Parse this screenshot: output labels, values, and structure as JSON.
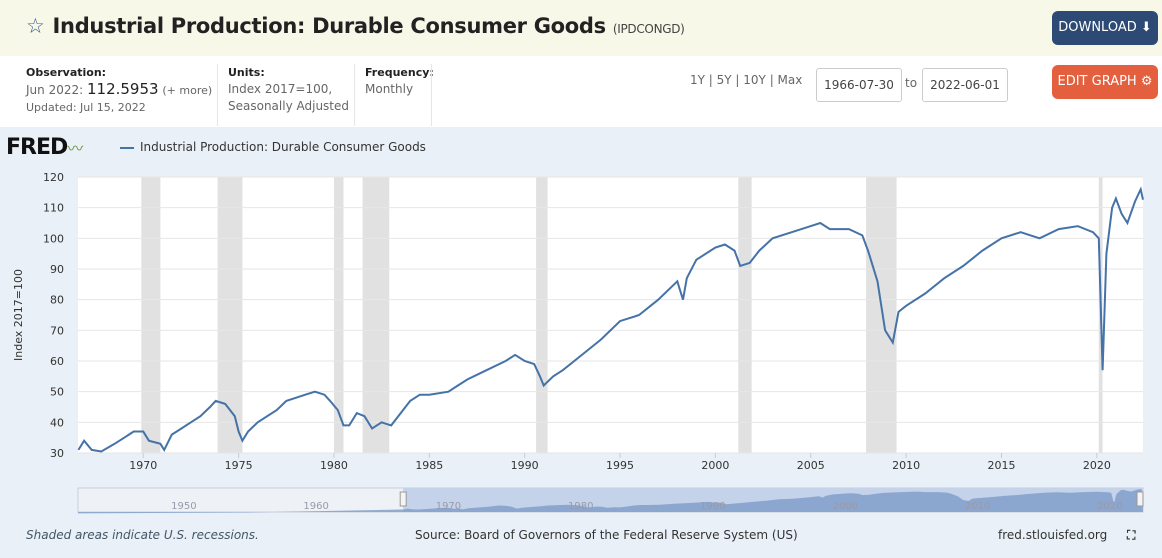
{
  "header": {
    "title": "Industrial Production: Durable Consumer Goods",
    "series_id": "(IPDCONGD)",
    "download": "DOWNLOAD",
    "edit_graph": "EDIT GRAPH"
  },
  "meta": {
    "observation_label": "Observation:",
    "observation_date": "Jun 2022:",
    "observation_value": "112.5953",
    "more": "(+ more)",
    "updated": "Updated: Jul 15, 2022",
    "units_label": "Units:",
    "units_1": "Index 2017=100,",
    "units_2": "Seasonally Adjusted",
    "frequency_label": "Frequency:",
    "frequency": "Monthly"
  },
  "range": {
    "presets": "1Y | 5Y | 10Y | Max",
    "start": "1966-07-30",
    "to": "to",
    "end": "2022-06-01"
  },
  "footer": {
    "note": "Shaded areas indicate U.S. recessions.",
    "source": "Source: Board of Governors of the Federal Reserve System (US)",
    "site": "fred.stlouisfed.org"
  },
  "logo": "FRED",
  "colors": {
    "line": "#4572a7",
    "recession": "#e1e1e1",
    "download": "#2d4a74",
    "edit": "#e35f3e"
  },
  "chart_data": {
    "type": "line",
    "title": "",
    "ylabel": "Index 2017=100",
    "ylim": [
      30,
      120
    ],
    "xlim": [
      1966.58,
      2022.42
    ],
    "yticks": [
      30,
      40,
      50,
      60,
      70,
      80,
      90,
      100,
      110,
      120
    ],
    "xticks": [
      1970,
      1975,
      1980,
      1985,
      1990,
      1995,
      2000,
      2005,
      2010,
      2015,
      2020
    ],
    "grid": true,
    "legend": "top-left",
    "series": [
      {
        "name": "Industrial Production: Durable Consumer Goods",
        "x": [
          1966.6,
          1966.9,
          1967.3,
          1967.8,
          1968.5,
          1969,
          1969.5,
          1970,
          1970.3,
          1970.9,
          1971.1,
          1971.5,
          1972,
          1972.5,
          1973,
          1973.5,
          1973.8,
          1974.3,
          1974.8,
          1975.0,
          1975.2,
          1975.5,
          1976,
          1977,
          1977.5,
          1978,
          1978.5,
          1979,
          1979.5,
          1979.8,
          1980.2,
          1980.5,
          1980.8,
          1981.2,
          1981.6,
          1982,
          1982.5,
          1983,
          1983.5,
          1984,
          1984.5,
          1985,
          1986,
          1986.5,
          1987,
          1988,
          1989,
          1989.5,
          1990,
          1990.5,
          1990.8,
          1991,
          1991.5,
          1992,
          1993,
          1994,
          1995,
          1995.5,
          1996,
          1997,
          1998,
          1998.3,
          1998.5,
          1999,
          2000,
          2000.5,
          2001,
          2001.3,
          2001.8,
          2002.3,
          2003,
          2004,
          2005,
          2005.5,
          2006,
          2007,
          2007.7,
          2008,
          2008.5,
          2008.9,
          2009.3,
          2009.6,
          2010,
          2011,
          2012,
          2013,
          2014,
          2015,
          2016,
          2017,
          2018,
          2019,
          2019.8,
          2020.1,
          2020.3,
          2020.5,
          2020.8,
          2021,
          2021.3,
          2021.6,
          2022,
          2022.3,
          2022.42
        ],
        "y": [
          31,
          34,
          31,
          30.5,
          33,
          35,
          37,
          37,
          34,
          33,
          31,
          36,
          38,
          40,
          42,
          45,
          47,
          46,
          42,
          37,
          34,
          37,
          40,
          44,
          47,
          48,
          49,
          50,
          49,
          47,
          44,
          39,
          39,
          43,
          42,
          38,
          40,
          39,
          43,
          47,
          49,
          49,
          50,
          52,
          54,
          57,
          60,
          62,
          60,
          59,
          55,
          52,
          55,
          57,
          62,
          67,
          73,
          74,
          75,
          80,
          86,
          80,
          87,
          93,
          97,
          98,
          96,
          91,
          92,
          96,
          100,
          102,
          104,
          105,
          103,
          103,
          101,
          96,
          86,
          70,
          66,
          76,
          78,
          82,
          87,
          91,
          96,
          100,
          102,
          100,
          103,
          104,
          102,
          100,
          57,
          95,
          110,
          113,
          108,
          105,
          112,
          116,
          112.6
        ]
      }
    ],
    "recessions": [
      [
        1969.9,
        1970.9
      ],
      [
        1973.9,
        1975.2
      ],
      [
        1980.0,
        1980.5
      ],
      [
        1981.5,
        1982.9
      ],
      [
        1990.6,
        1991.2
      ],
      [
        2001.2,
        2001.9
      ],
      [
        2007.9,
        2009.5
      ],
      [
        2020.1,
        2020.3
      ]
    ],
    "navigator_ticks": [
      1950,
      1960,
      1970,
      1980,
      1990,
      2000,
      2010,
      2020
    ]
  }
}
